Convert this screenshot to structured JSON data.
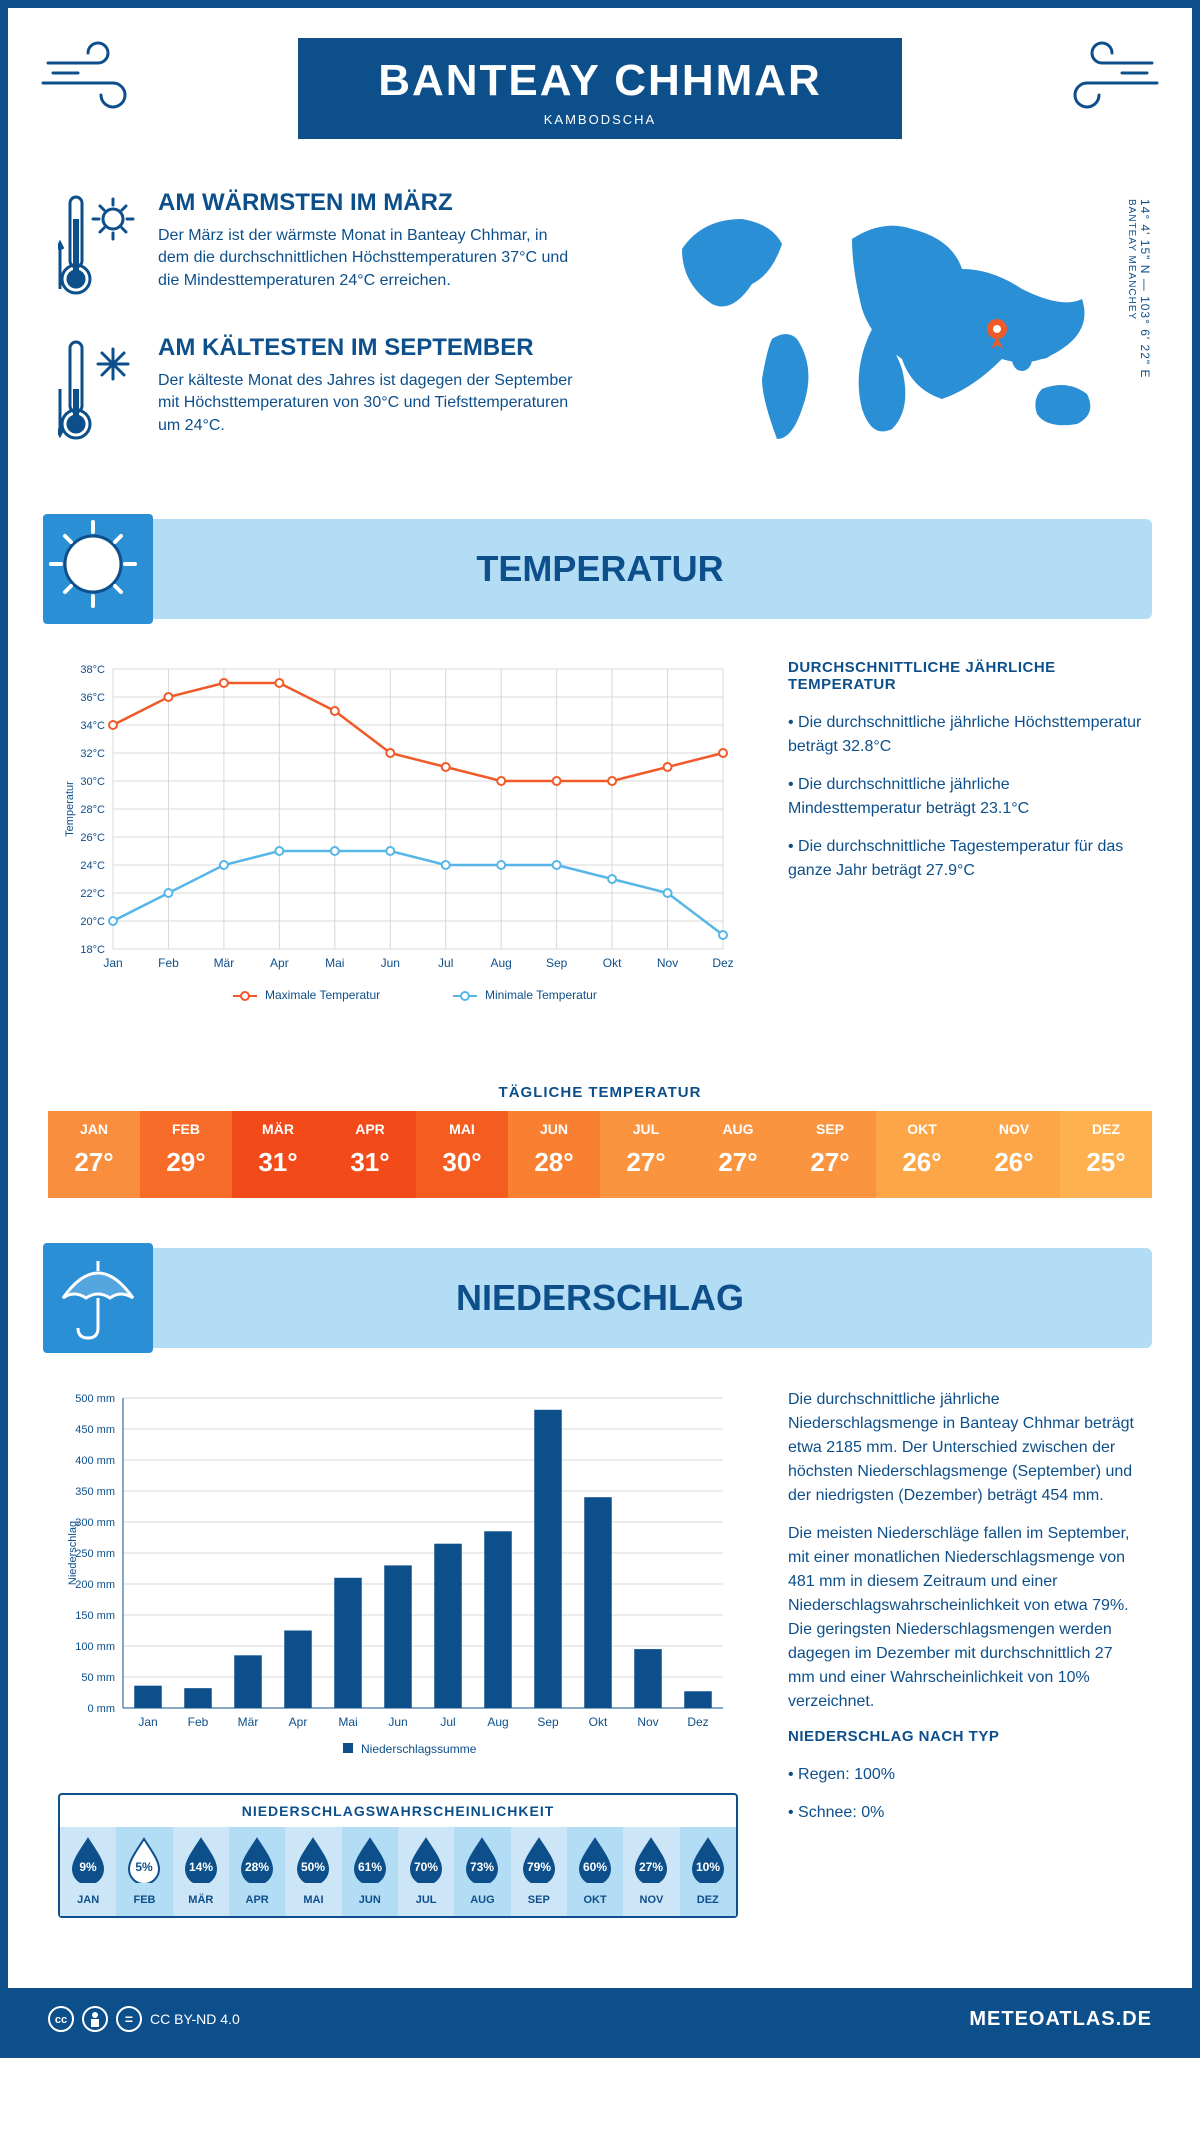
{
  "header": {
    "title": "BANTEAY CHHMAR",
    "subtitle": "KAMBODSCHA"
  },
  "coords": {
    "lat": "14° 4' 15\" N",
    "lon": "103° 6' 22\" E",
    "region": "BANTEAY MEANCHEY"
  },
  "warm": {
    "title": "AM WÄRMSTEN IM MÄRZ",
    "text": "Der März ist der wärmste Monat in Banteay Chhmar, in dem die durchschnittlichen Höchsttemperaturen 37°C und die Mindesttemperaturen 24°C erreichen."
  },
  "cold": {
    "title": "AM KÄLTESTEN IM SEPTEMBER",
    "text": "Der kälteste Monat des Jahres ist dagegen der September mit Höchsttemperaturen von 30°C und Tiefsttemperaturen um 24°C."
  },
  "colors": {
    "primary": "#0d4f8b",
    "blue": "#2b8fd6",
    "lightBlue": "#b3dcf5",
    "maxLine": "#f05a28",
    "minLine": "#58b5e8",
    "grid": "#d8d8d8",
    "bar": "#0d4f8b",
    "marker": "#f05a28"
  },
  "temperature": {
    "sectionTitle": "TEMPERATUR",
    "yAxisLabel": "Temperatur",
    "ymin": 18,
    "ymax": 38,
    "ystep": 2,
    "months": [
      "Jan",
      "Feb",
      "Mär",
      "Apr",
      "Mai",
      "Jun",
      "Jul",
      "Aug",
      "Sep",
      "Okt",
      "Nov",
      "Dez"
    ],
    "max": [
      34,
      36,
      37,
      37,
      35,
      32,
      31,
      30,
      30,
      30,
      31,
      32
    ],
    "min": [
      20,
      22,
      24,
      25,
      25,
      25,
      24,
      24,
      24,
      23,
      22,
      19
    ],
    "legend": {
      "max": "Maximale Temperatur",
      "min": "Minimale Temperatur"
    },
    "summaryTitle": "DURCHSCHNITTLICHE JÄHRLICHE TEMPERATUR",
    "summary": [
      "Die durchschnittliche jährliche Höchsttemperatur beträgt 32.8°C",
      "Die durchschnittliche jährliche Mindesttemperatur beträgt 23.1°C",
      "Die durchschnittliche Tagestemperatur für das ganze Jahr beträgt 27.9°C"
    ]
  },
  "daily": {
    "title": "TÄGLICHE TEMPERATUR",
    "months": [
      "JAN",
      "FEB",
      "MÄR",
      "APR",
      "MAI",
      "JUN",
      "JUL",
      "AUG",
      "SEP",
      "OKT",
      "NOV",
      "DEZ"
    ],
    "values": [
      27,
      29,
      31,
      31,
      30,
      28,
      27,
      27,
      27,
      26,
      26,
      25
    ],
    "colors": [
      "#f98e3e",
      "#f76c28",
      "#f24a18",
      "#f24a18",
      "#f55d20",
      "#f98030",
      "#fb943e",
      "#fb943e",
      "#fb943e",
      "#fda648",
      "#fda648",
      "#feb150"
    ]
  },
  "precip": {
    "sectionTitle": "NIEDERSCHLAG",
    "yAxisLabel": "Niederschlag",
    "ymin": 0,
    "ymax": 500,
    "ystep": 50,
    "legend": "Niederschlagssumme",
    "months": [
      "Jan",
      "Feb",
      "Mär",
      "Apr",
      "Mai",
      "Jun",
      "Jul",
      "Aug",
      "Sep",
      "Okt",
      "Nov",
      "Dez"
    ],
    "values": [
      36,
      32,
      85,
      125,
      210,
      230,
      265,
      285,
      481,
      340,
      95,
      27
    ],
    "text1": "Die durchschnittliche jährliche Niederschlagsmenge in Banteay Chhmar beträgt etwa 2185 mm. Der Unterschied zwischen der höchsten Niederschlagsmenge (September) und der niedrigsten (Dezember) beträgt 454 mm.",
    "text2": "Die meisten Niederschläge fallen im September, mit einer monatlichen Niederschlagsmenge von 481 mm in diesem Zeitraum und einer Niederschlagswahrscheinlichkeit von etwa 79%. Die geringsten Niederschlagsmengen werden dagegen im Dezember mit durchschnittlich 27 mm und einer Wahrscheinlichkeit von 10% verzeichnet.",
    "byTypeTitle": "NIEDERSCHLAG NACH TYP",
    "byType": [
      "Regen: 100%",
      "Schnee: 0%"
    ],
    "probTitle": "NIEDERSCHLAGSWAHRSCHEINLICHKEIT",
    "probMonths": [
      "JAN",
      "FEB",
      "MÄR",
      "APR",
      "MAI",
      "JUN",
      "JUL",
      "AUG",
      "SEP",
      "OKT",
      "NOV",
      "DEZ"
    ],
    "prob": [
      9,
      5,
      14,
      28,
      50,
      61,
      70,
      73,
      79,
      60,
      27,
      10
    ],
    "probMin": 5
  },
  "footer": {
    "cc": "CC BY-ND 4.0",
    "brand": "METEOATLAS.DE"
  }
}
